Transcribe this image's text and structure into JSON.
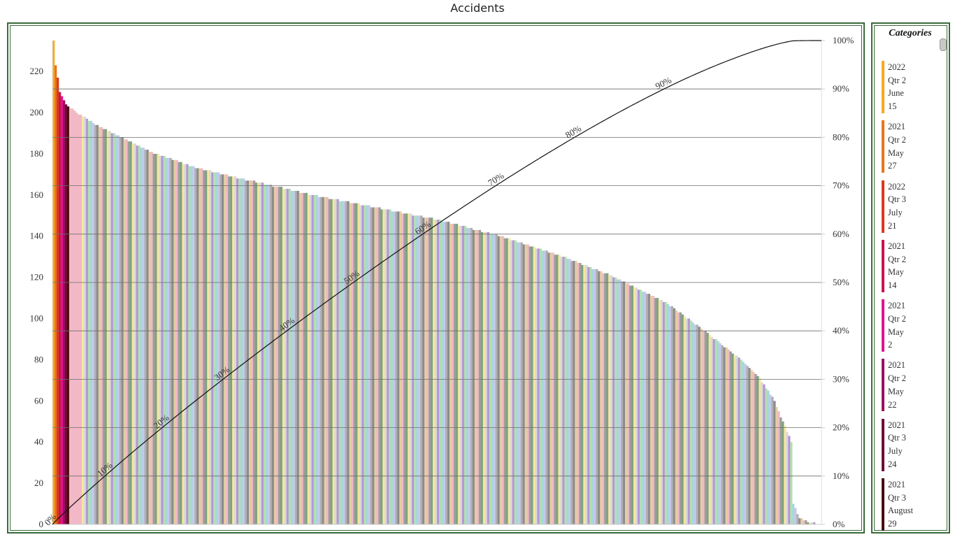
{
  "title": "Accidents",
  "legend_title": "Categories",
  "legend_items": [
    {
      "year": "2022",
      "qtr": "Qtr 2",
      "month": "June",
      "day": "15",
      "color": "#f7a823"
    },
    {
      "year": "2021",
      "qtr": "Qtr 2",
      "month": "May",
      "day": "27",
      "color": "#e8761b"
    },
    {
      "year": "2022",
      "qtr": "Qtr 3",
      "month": "July",
      "day": "21",
      "color": "#d93b1e"
    },
    {
      "year": "2021",
      "qtr": "Qtr 2",
      "month": "May",
      "day": "14",
      "color": "#c8144e"
    },
    {
      "year": "2021",
      "qtr": "Qtr 2",
      "month": "May",
      "day": "2",
      "color": "#e0138f"
    },
    {
      "year": "2021",
      "qtr": "Qtr 2",
      "month": "May",
      "day": "22",
      "color": "#9c0f62"
    },
    {
      "year": "2021",
      "qtr": "Qtr 3",
      "month": "July",
      "day": "24",
      "color": "#6e0b36"
    },
    {
      "year": "2021",
      "qtr": "Qtr 3",
      "month": "August",
      "day": "29",
      "color": "#4d0a0a"
    }
  ],
  "chart_data": {
    "type": "bar",
    "title": "Accidents",
    "categories_count": 368,
    "y_left": {
      "min": 0,
      "max": 235,
      "ticks": [
        0,
        20,
        40,
        60,
        80,
        100,
        120,
        140,
        160,
        180,
        200,
        220
      ]
    },
    "y_right": {
      "ticks": [
        "0%",
        "10%",
        "20%",
        "30%",
        "40%",
        "50%",
        "60%",
        "70%",
        "80%",
        "90%",
        "100%"
      ]
    },
    "grid": true,
    "legend_position": "right",
    "bar_profile": [
      {
        "rank": 1,
        "value": 235
      },
      {
        "rank": 2,
        "value": 223
      },
      {
        "rank": 3,
        "value": 217
      },
      {
        "rank": 4,
        "value": 210
      },
      {
        "rank": 7,
        "value": 204
      },
      {
        "rank": 12,
        "value": 200
      },
      {
        "rank": 20,
        "value": 195
      },
      {
        "rank": 35,
        "value": 187
      },
      {
        "rank": 50,
        "value": 180
      },
      {
        "rank": 70,
        "value": 173
      },
      {
        "rank": 95,
        "value": 167
      },
      {
        "rank": 125,
        "value": 160
      },
      {
        "rank": 150,
        "value": 155
      },
      {
        "rank": 185,
        "value": 148
      },
      {
        "rank": 215,
        "value": 140
      },
      {
        "rank": 245,
        "value": 130
      },
      {
        "rank": 270,
        "value": 120
      },
      {
        "rank": 295,
        "value": 107
      },
      {
        "rank": 310,
        "value": 96
      },
      {
        "rank": 330,
        "value": 80
      },
      {
        "rank": 338,
        "value": 72
      },
      {
        "rank": 345,
        "value": 62
      },
      {
        "rank": 350,
        "value": 50
      },
      {
        "rank": 354,
        "value": 40
      },
      {
        "rank": 355,
        "value": 10
      },
      {
        "rank": 358,
        "value": 3
      },
      {
        "rank": 363,
        "value": 1
      },
      {
        "rank": 368,
        "value": 0
      }
    ],
    "cumulative_labels": [
      "0%",
      "10%",
      "20%",
      "30%",
      "40%",
      "50%",
      "60%",
      "70%",
      "80%",
      "90%"
    ],
    "line_color": "#111111",
    "bar_colors": [
      "#9e9e9e",
      "#b3e0ae",
      "#c7c7f0",
      "#8c8c8c",
      "#f4e6a0",
      "#b596d6",
      "#a6d8d8",
      "#f2b8c6",
      "#7fa37f",
      "#d9d9d9",
      "#b0b0b0",
      "#e2cfa0"
    ]
  }
}
